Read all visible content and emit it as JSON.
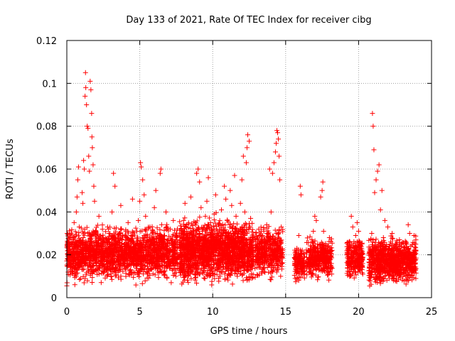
{
  "chart_data": {
    "type": "scatter",
    "title": "Day 133 of 2021, Rate Of TEC Index for receiver cibg",
    "xlabel": "GPS time / hours",
    "ylabel": "ROTI / TECUs",
    "xlim": [
      0,
      25
    ],
    "ylim": [
      0,
      0.12
    ],
    "x_ticks": [
      0,
      5,
      10,
      15,
      20,
      25
    ],
    "y_ticks": [
      0,
      0.02,
      0.04,
      0.06,
      0.08,
      0.1,
      0.12
    ],
    "x_tick_labels": [
      "0",
      "5",
      "10",
      "15",
      "20",
      "25"
    ],
    "y_tick_labels": [
      "0",
      "0.02",
      "0.04",
      "0.06",
      "0.08",
      "0.1",
      "0.12"
    ],
    "grid": true,
    "marker": "+",
    "series": [
      {
        "name": "ROTI",
        "color": "#ff0000",
        "points": [
          [
            0.05,
            0.018
          ],
          [
            0.1,
            0.022
          ],
          [
            0.15,
            0.015
          ],
          [
            0.2,
            0.025
          ],
          [
            0.25,
            0.012
          ],
          [
            0.3,
            0.03
          ],
          [
            0.35,
            0.02
          ],
          [
            0.4,
            0.016
          ],
          [
            0.45,
            0.028
          ],
          [
            0.5,
            0.035
          ],
          [
            0.55,
            0.019
          ],
          [
            0.6,
            0.024
          ],
          [
            0.65,
            0.04
          ],
          [
            0.7,
            0.047
          ],
          [
            0.75,
            0.055
          ],
          [
            0.8,
            0.061
          ],
          [
            0.85,
            0.033
          ],
          [
            0.9,
            0.021
          ],
          [
            0.95,
            0.027
          ],
          [
            1.0,
            0.018
          ],
          [
            1.05,
            0.049
          ],
          [
            1.1,
            0.044
          ],
          [
            1.15,
            0.064
          ],
          [
            1.2,
            0.06
          ],
          [
            1.25,
            0.094
          ],
          [
            1.28,
            0.105
          ],
          [
            1.3,
            0.098
          ],
          [
            1.35,
            0.09
          ],
          [
            1.4,
            0.08
          ],
          [
            1.45,
            0.079
          ],
          [
            1.5,
            0.066
          ],
          [
            1.55,
            0.059
          ],
          [
            1.6,
            0.101
          ],
          [
            1.65,
            0.097
          ],
          [
            1.7,
            0.086
          ],
          [
            1.72,
            0.075
          ],
          [
            1.75,
            0.07
          ],
          [
            1.8,
            0.062
          ],
          [
            1.85,
            0.052
          ],
          [
            1.9,
            0.045
          ],
          [
            2.0,
            0.031
          ],
          [
            2.1,
            0.024
          ],
          [
            2.2,
            0.038
          ],
          [
            2.3,
            0.02
          ],
          [
            2.4,
            0.015
          ],
          [
            2.5,
            0.028
          ],
          [
            2.6,
            0.022
          ],
          [
            2.7,
            0.017
          ],
          [
            2.8,
            0.033
          ],
          [
            2.9,
            0.026
          ],
          [
            3.0,
            0.019
          ],
          [
            3.1,
            0.04
          ],
          [
            3.2,
            0.058
          ],
          [
            3.3,
            0.052
          ],
          [
            3.4,
            0.023
          ],
          [
            3.5,
            0.018
          ],
          [
            3.6,
            0.03
          ],
          [
            3.7,
            0.043
          ],
          [
            3.8,
            0.027
          ],
          [
            3.9,
            0.02
          ],
          [
            4.0,
            0.025
          ],
          [
            4.1,
            0.017
          ],
          [
            4.2,
            0.035
          ],
          [
            4.3,
            0.022
          ],
          [
            4.4,
            0.029
          ],
          [
            4.5,
            0.046
          ],
          [
            4.6,
            0.019
          ],
          [
            4.7,
            0.024
          ],
          [
            4.8,
            0.031
          ],
          [
            4.9,
            0.036
          ],
          [
            5.0,
            0.045
          ],
          [
            5.05,
            0.063
          ],
          [
            5.1,
            0.061
          ],
          [
            5.2,
            0.055
          ],
          [
            5.3,
            0.048
          ],
          [
            5.4,
            0.038
          ],
          [
            5.5,
            0.028
          ],
          [
            5.6,
            0.021
          ],
          [
            5.7,
            0.033
          ],
          [
            5.8,
            0.026
          ],
          [
            5.9,
            0.019
          ],
          [
            6.0,
            0.042
          ],
          [
            6.1,
            0.05
          ],
          [
            6.2,
            0.03
          ],
          [
            6.3,
            0.022
          ],
          [
            6.4,
            0.058
          ],
          [
            6.45,
            0.06
          ],
          [
            6.5,
            0.034
          ],
          [
            6.6,
            0.025
          ],
          [
            6.7,
            0.029
          ],
          [
            6.8,
            0.04
          ],
          [
            6.9,
            0.023
          ],
          [
            7.0,
            0.018
          ],
          [
            7.1,
            0.032
          ],
          [
            7.2,
            0.027
          ],
          [
            7.3,
            0.036
          ],
          [
            7.4,
            0.021
          ],
          [
            7.5,
            0.016
          ],
          [
            7.8,
            0.02
          ],
          [
            7.9,
            0.028
          ],
          [
            8.0,
            0.036
          ],
          [
            8.1,
            0.044
          ],
          [
            8.2,
            0.024
          ],
          [
            8.3,
            0.018
          ],
          [
            8.4,
            0.03
          ],
          [
            8.5,
            0.047
          ],
          [
            8.6,
            0.022
          ],
          [
            8.7,
            0.026
          ],
          [
            8.8,
            0.035
          ],
          [
            8.9,
            0.058
          ],
          [
            9.0,
            0.06
          ],
          [
            9.1,
            0.054
          ],
          [
            9.2,
            0.042
          ],
          [
            9.3,
            0.031
          ],
          [
            9.4,
            0.024
          ],
          [
            9.5,
            0.038
          ],
          [
            9.6,
            0.045
          ],
          [
            9.7,
            0.056
          ],
          [
            9.8,
            0.028
          ],
          [
            9.9,
            0.033
          ],
          [
            10.0,
            0.021
          ],
          [
            10.1,
            0.039
          ],
          [
            10.2,
            0.048
          ],
          [
            10.3,
            0.027
          ],
          [
            10.4,
            0.034
          ],
          [
            10.5,
            0.025
          ],
          [
            10.6,
            0.041
          ],
          [
            10.7,
            0.03
          ],
          [
            10.8,
            0.052
          ],
          [
            10.9,
            0.046
          ],
          [
            11.0,
            0.036
          ],
          [
            11.1,
            0.029
          ],
          [
            11.2,
            0.05
          ],
          [
            11.3,
            0.043
          ],
          [
            11.4,
            0.023
          ],
          [
            11.5,
            0.057
          ],
          [
            11.6,
            0.038
          ],
          [
            11.7,
            0.026
          ],
          [
            11.8,
            0.031
          ],
          [
            11.9,
            0.044
          ],
          [
            12.0,
            0.055
          ],
          [
            12.1,
            0.066
          ],
          [
            12.2,
            0.04
          ],
          [
            12.3,
            0.063
          ],
          [
            12.35,
            0.07
          ],
          [
            12.4,
            0.076
          ],
          [
            12.5,
            0.073
          ],
          [
            12.6,
            0.037
          ],
          [
            12.7,
            0.027
          ],
          [
            13.1,
            0.022
          ],
          [
            13.2,
            0.029
          ],
          [
            13.3,
            0.018
          ],
          [
            13.4,
            0.026
          ],
          [
            13.5,
            0.031
          ],
          [
            13.6,
            0.02
          ],
          [
            13.7,
            0.034
          ],
          [
            13.8,
            0.028
          ],
          [
            13.9,
            0.06
          ],
          [
            14.0,
            0.04
          ],
          [
            14.1,
            0.058
          ],
          [
            14.2,
            0.063
          ],
          [
            14.3,
            0.068
          ],
          [
            14.35,
            0.072
          ],
          [
            14.4,
            0.078
          ],
          [
            14.45,
            0.077
          ],
          [
            14.5,
            0.074
          ],
          [
            14.55,
            0.066
          ],
          [
            14.6,
            0.055
          ],
          [
            14.7,
            0.033
          ],
          [
            15.7,
            0.014
          ],
          [
            15.8,
            0.019
          ],
          [
            15.9,
            0.029
          ],
          [
            16.0,
            0.052
          ],
          [
            16.05,
            0.048
          ],
          [
            16.1,
            0.02
          ],
          [
            16.2,
            0.012
          ],
          [
            16.5,
            0.015
          ],
          [
            16.6,
            0.022
          ],
          [
            16.7,
            0.018
          ],
          [
            16.8,
            0.027
          ],
          [
            16.9,
            0.031
          ],
          [
            17.0,
            0.038
          ],
          [
            17.1,
            0.036
          ],
          [
            17.2,
            0.025
          ],
          [
            17.3,
            0.02
          ],
          [
            17.4,
            0.047
          ],
          [
            17.5,
            0.05
          ],
          [
            17.55,
            0.054
          ],
          [
            17.6,
            0.031
          ],
          [
            17.7,
            0.022
          ],
          [
            17.8,
            0.016
          ],
          [
            17.9,
            0.024
          ],
          [
            18.0,
            0.028
          ],
          [
            18.1,
            0.019
          ],
          [
            19.3,
            0.018
          ],
          [
            19.4,
            0.026
          ],
          [
            19.5,
            0.038
          ],
          [
            19.6,
            0.033
          ],
          [
            19.7,
            0.022
          ],
          [
            19.8,
            0.029
          ],
          [
            19.9,
            0.035
          ],
          [
            20.0,
            0.031
          ],
          [
            20.1,
            0.024
          ],
          [
            20.2,
            0.017
          ],
          [
            20.8,
            0.021
          ],
          [
            20.9,
            0.03
          ],
          [
            20.95,
            0.086
          ],
          [
            21.0,
            0.08
          ],
          [
            21.05,
            0.069
          ],
          [
            21.1,
            0.049
          ],
          [
            21.2,
            0.055
          ],
          [
            21.3,
            0.059
          ],
          [
            21.4,
            0.062
          ],
          [
            21.5,
            0.041
          ],
          [
            21.6,
            0.05
          ],
          [
            21.7,
            0.028
          ],
          [
            21.8,
            0.036
          ],
          [
            21.9,
            0.024
          ],
          [
            22.0,
            0.033
          ],
          [
            22.1,
            0.02
          ],
          [
            22.2,
            0.026
          ],
          [
            22.3,
            0.03
          ],
          [
            22.4,
            0.022
          ],
          [
            22.5,
            0.018
          ],
          [
            22.7,
            0.023
          ],
          [
            22.8,
            0.027
          ],
          [
            22.9,
            0.016
          ],
          [
            23.0,
            0.021
          ],
          [
            23.1,
            0.013
          ],
          [
            23.2,
            0.019
          ],
          [
            23.3,
            0.025
          ],
          [
            23.4,
            0.034
          ],
          [
            23.5,
            0.03
          ],
          [
            23.6,
            0.02
          ],
          [
            23.7,
            0.017
          ],
          [
            23.8,
            0.029
          ],
          [
            23.9,
            0.022
          ]
        ]
      }
    ]
  },
  "dense_bands": [
    {
      "x_start": 0.0,
      "x_end": 7.6,
      "y_low": 0.005,
      "y_high": 0.036,
      "count": 1900
    },
    {
      "x_start": 7.7,
      "x_end": 12.8,
      "y_low": 0.004,
      "y_high": 0.04,
      "count": 1700
    },
    {
      "x_start": 12.9,
      "x_end": 14.8,
      "y_low": 0.007,
      "y_high": 0.036,
      "count": 420
    },
    {
      "x_start": 15.6,
      "x_end": 16.3,
      "y_low": 0.006,
      "y_high": 0.026,
      "count": 150
    },
    {
      "x_start": 16.4,
      "x_end": 18.2,
      "y_low": 0.007,
      "y_high": 0.03,
      "count": 380
    },
    {
      "x_start": 19.2,
      "x_end": 20.3,
      "y_low": 0.007,
      "y_high": 0.03,
      "count": 260
    },
    {
      "x_start": 20.7,
      "x_end": 23.95,
      "y_low": 0.004,
      "y_high": 0.03,
      "count": 900
    }
  ]
}
